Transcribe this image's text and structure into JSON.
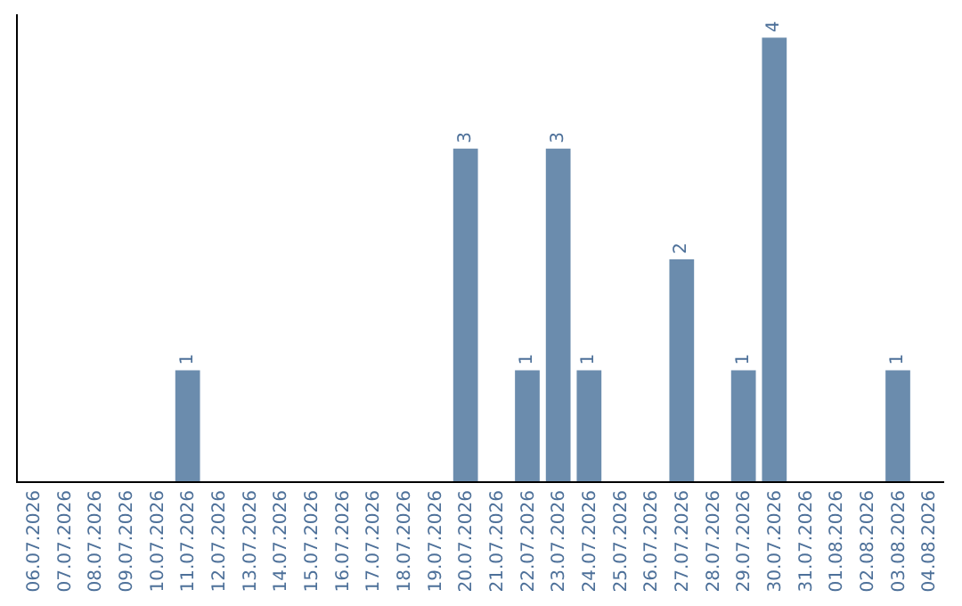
{
  "chart_data": {
    "type": "bar",
    "categories": [
      "06.07.2026",
      "07.07.2026",
      "08.07.2026",
      "09.07.2026",
      "10.07.2026",
      "11.07.2026",
      "12.07.2026",
      "13.07.2026",
      "14.07.2026",
      "15.07.2026",
      "16.07.2026",
      "17.07.2026",
      "18.07.2026",
      "19.07.2026",
      "20.07.2026",
      "21.07.2026",
      "22.07.2026",
      "23.07.2026",
      "24.07.2026",
      "25.07.2026",
      "26.07.2026",
      "27.07.2026",
      "28.07.2026",
      "29.07.2026",
      "30.07.2026",
      "31.07.2026",
      "01.08.2026",
      "02.08.2026",
      "03.08.2026",
      "04.08.2026"
    ],
    "values": [
      0,
      0,
      0,
      0,
      0,
      1,
      0,
      0,
      0,
      0,
      0,
      0,
      0,
      0,
      3,
      0,
      1,
      3,
      1,
      0,
      0,
      2,
      0,
      1,
      4,
      0,
      0,
      0,
      1,
      0
    ],
    "value_labels": [
      null,
      null,
      null,
      null,
      null,
      "1",
      null,
      null,
      null,
      null,
      null,
      null,
      null,
      null,
      "3",
      null,
      "1",
      "3",
      "1",
      null,
      null,
      "2",
      null,
      "1",
      "4",
      null,
      null,
      null,
      "1",
      null
    ],
    "color": "#6b8cad",
    "legend": false,
    "tick_labels": "x"
  }
}
